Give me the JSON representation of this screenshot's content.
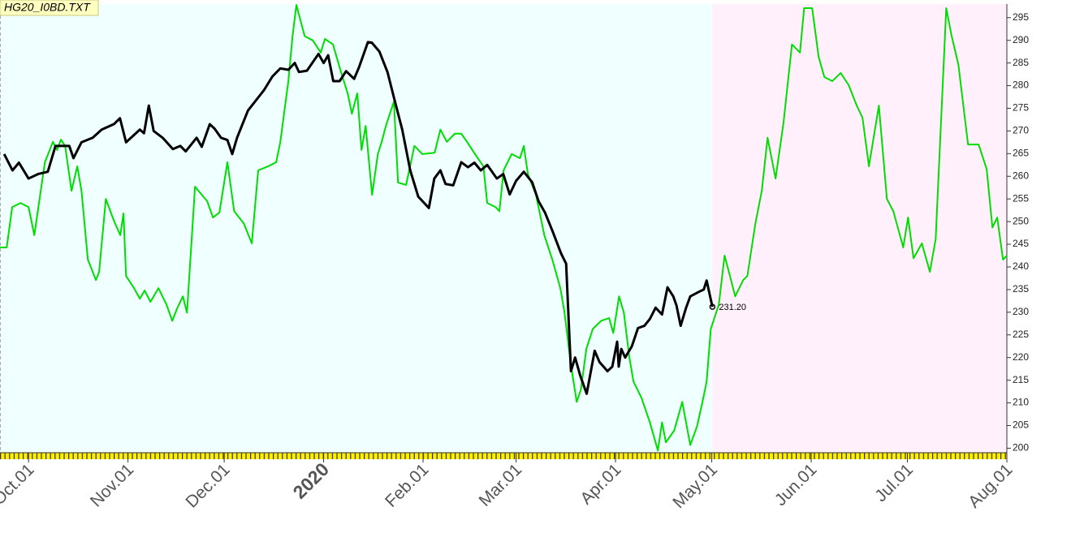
{
  "chart_data": {
    "type": "line",
    "title": "HG20_I0BD.TXT",
    "xlim": [
      -8.9,
      305
    ],
    "ylim": [
      199,
      298
    ],
    "yticks": [
      200,
      205,
      210,
      215,
      220,
      225,
      230,
      235,
      240,
      245,
      250,
      255,
      260,
      265,
      270,
      275,
      280,
      285,
      290,
      295
    ],
    "xticks": [
      {
        "value": 0,
        "label": "Oct.01"
      },
      {
        "value": 31,
        "label": "Nov.01"
      },
      {
        "value": 61,
        "label": "Dec.01"
      },
      {
        "value": 92,
        "label": "2020",
        "color": "#800000"
      },
      {
        "value": 123,
        "label": "Feb.01"
      },
      {
        "value": 152,
        "label": "Mar.01"
      },
      {
        "value": 183,
        "label": "Apr.01"
      },
      {
        "value": 213,
        "label": "May.01"
      },
      {
        "value": 244,
        "label": "Jun.01"
      },
      {
        "value": 274,
        "label": "Jul.01"
      },
      {
        "value": 305,
        "label": "Aug.01"
      }
    ],
    "series": [
      {
        "color": "#00dd00",
        "x": [
          -8.9,
          -6.8,
          -5.1,
          -2.5,
          0,
          1.8,
          5.1,
          7.6,
          8.9,
          10.1,
          11.4,
          13.4,
          15.2,
          16.5,
          18.5,
          21,
          22,
          24.1,
          26.6,
          28.6,
          29.6,
          30.4,
          32.9,
          34.7,
          36.2,
          38,
          40.5,
          43,
          44.8,
          46.3,
          48.1,
          49.4,
          51.9,
          55.7,
          57.5,
          59.5,
          62,
          64.1,
          67.1,
          69.6,
          71.6,
          74.7,
          77.2,
          78.5,
          81,
          82.3,
          83.5,
          86.1,
          88.6,
          91.1,
          92.4,
          94.9,
          97.5,
          99.5,
          100.8,
          102.5,
          103.8,
          105.1,
          107.1,
          108.9,
          110.1,
          111.4,
          113.9,
          115.2,
          117.7,
          120.3,
          122.8,
          126.6,
          128.4,
          130.4,
          132.9,
          134.9,
          136.7,
          139.2,
          141.8,
          143,
          145.6,
          146.8,
          148.1,
          150.6,
          153.2,
          154.4,
          155.7,
          158.2,
          160.8,
          163.3,
          165.8,
          167.1,
          169.1,
          170.9,
          172.2,
          173.9,
          175.9,
          178.5,
          181,
          182.3,
          184.1,
          185.6,
          187.3,
          188.6,
          191.1,
          193.7,
          196.2,
          197.5,
          198.7,
          201.3,
          203.8,
          206.3,
          208.4,
          210.1,
          211.4,
          212.7,
          215.2,
          217,
          219,
          220.3,
          222.8,
          224.1,
          226.6,
          228.6,
          230.4,
          232.9,
          235.4,
          238,
          240.5,
          241.8,
          244.3,
          246.3,
          248.1,
          250.6,
          253.2,
          255.7,
          258.2,
          260,
          262,
          265.1,
          267.6,
          269.6,
          272.7,
          274.2,
          275.9,
          278.5,
          281,
          282.8,
          286.1,
          287.8,
          289.9,
          292.9,
          296.2,
          298.7,
          300.5,
          302,
          303.8,
          305
        ],
        "values": [
          244.3,
          244.3,
          253.2,
          254.1,
          253.2,
          247,
          263.1,
          267.6,
          265.8,
          268.1,
          266.7,
          256.8,
          262.2,
          256.8,
          241.6,
          237.1,
          238.9,
          255,
          250.2,
          247,
          251.8,
          238,
          235.3,
          233,
          234.8,
          232.3,
          235.3,
          231.7,
          228.1,
          230.8,
          233.5,
          229.9,
          257.7,
          254.5,
          250.9,
          252,
          263.1,
          252.3,
          249.6,
          245.2,
          261.3,
          262.2,
          263.1,
          267.6,
          281,
          290.9,
          297.8,
          290.9,
          290,
          287.3,
          290.3,
          289.1,
          282.8,
          278.3,
          273.8,
          278.3,
          265.8,
          271.1,
          255.9,
          264.9,
          267.6,
          271.1,
          276.5,
          258.6,
          258.1,
          266.7,
          264.9,
          265.2,
          270.3,
          267.6,
          269.4,
          269.4,
          267.6,
          264.9,
          262.2,
          254.1,
          253.2,
          252.3,
          261.3,
          264.9,
          264,
          266.7,
          260.4,
          255.9,
          247,
          241.6,
          235.3,
          229.9,
          218.3,
          210.2,
          212.9,
          221.9,
          226.3,
          228.1,
          228.7,
          225.4,
          233.5,
          229.9,
          220.1,
          214.7,
          211.1,
          205.7,
          199.5,
          205.7,
          201.3,
          203.9,
          210.2,
          200.7,
          204.8,
          210.2,
          214.7,
          226.3,
          231.7,
          242.5,
          237.1,
          233.5,
          237.1,
          238,
          249.6,
          256.8,
          268.5,
          259.5,
          272,
          289.1,
          287.3,
          297.1,
          297.1,
          286.4,
          281.9,
          281,
          282.8,
          280.1,
          275.6,
          272.9,
          262.2,
          275.6,
          255,
          252.3,
          244.3,
          250.9,
          241.9,
          245.2,
          238.9,
          246.1,
          297.1,
          290.9,
          284.6,
          267,
          267,
          261.6,
          248.7,
          250.9,
          241.6,
          242.5
        ]
      },
      {
        "color": "#000000",
        "x": [
          -7.6,
          -5,
          -3,
          0,
          3,
          6,
          8.4,
          12.7,
          14,
          16.5,
          20,
          22.8,
          26.6,
          28.5,
          30.4,
          34.7,
          36,
          37.5,
          39,
          41.8,
          45,
          47.3,
          49,
          52.4,
          54,
          56.5,
          58,
          60,
          62,
          63.5,
          65,
          68.4,
          73.4,
          76,
          78.5,
          81,
          83,
          84.3,
          86.8,
          90.4,
          92,
          93.4,
          95,
          97,
          99,
          101.5,
          103,
          105.8,
          107,
          109.4,
          111.9,
          113.9,
          116.5,
          119,
          121.5,
          124.8,
          126.5,
          128.4,
          130,
          132.4,
          134.9,
          137,
          139,
          141,
          143,
          146,
          148,
          150,
          152,
          154.4,
          157,
          159,
          161,
          163.3,
          166,
          167.6,
          169.1,
          170.4,
          172,
          174,
          176.5,
          178,
          180.5,
          182,
          183.5,
          184,
          184.8,
          186,
          188.1,
          190,
          192,
          193.7,
          195.5,
          197.5,
          199.2,
          201,
          202,
          203.3,
          205,
          206.3,
          209,
          210.5,
          211.4,
          213.2
        ],
        "values": [
          264.9,
          261.3,
          263,
          259.5,
          260.5,
          261,
          266.7,
          266.7,
          264,
          267.5,
          268.5,
          270.3,
          271.5,
          272.8,
          267.5,
          270.3,
          269.5,
          275.6,
          270,
          268.5,
          266,
          266.7,
          265.5,
          268.5,
          266.5,
          271.5,
          270.5,
          268.5,
          268,
          264.9,
          268.5,
          274.5,
          279,
          282,
          283.8,
          283.5,
          285,
          283,
          283.3,
          287,
          285,
          286.7,
          281,
          281,
          283.2,
          281.5,
          284,
          289.6,
          289.5,
          287.5,
          283,
          277.4,
          270.3,
          261.3,
          255.5,
          253,
          259.5,
          261.3,
          258.3,
          258,
          263.1,
          262,
          263,
          261.3,
          262.5,
          259.5,
          260.5,
          256,
          259,
          261,
          258.7,
          254.5,
          252,
          248,
          243,
          240.7,
          217,
          220,
          216,
          212,
          221.5,
          219,
          217,
          218,
          223.5,
          218,
          221.9,
          220,
          222.5,
          226.5,
          227,
          228.5,
          231,
          229.5,
          235.5,
          233.5,
          231.5,
          227,
          231,
          233.5,
          234.5,
          235,
          237,
          231.2
        ]
      }
    ],
    "annotations": [
      {
        "x": 213.2,
        "value": 231.2,
        "label": "231.20"
      }
    ]
  }
}
